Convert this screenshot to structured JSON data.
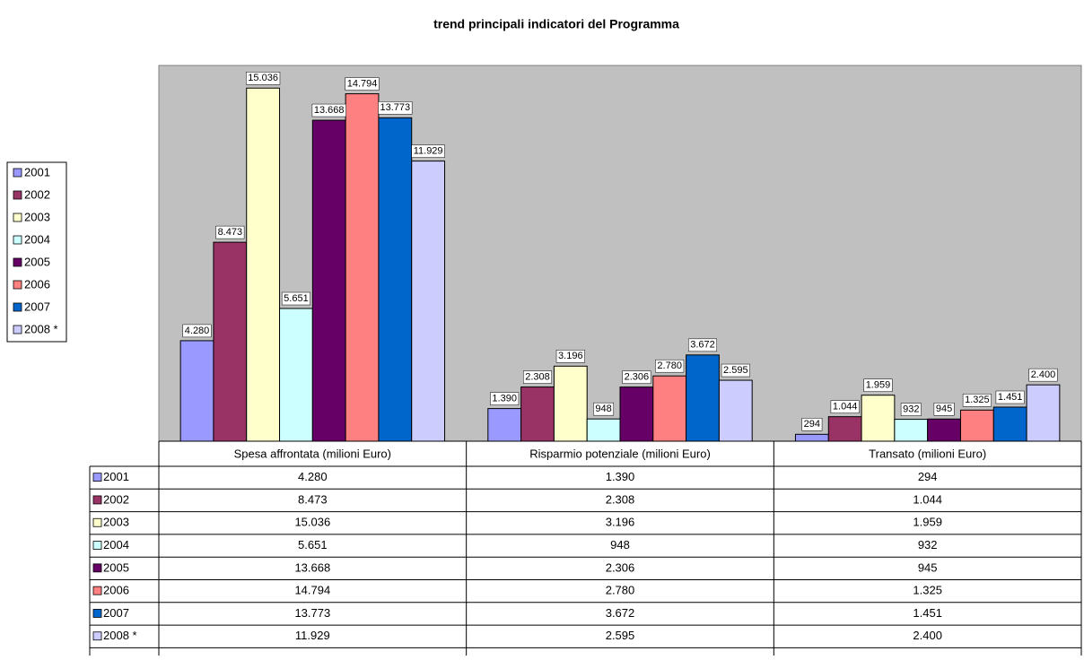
{
  "chart_data": {
    "type": "bar",
    "title": "trend principali indicatori del Programma",
    "categories": [
      "Spesa affrontata (milioni Euro)",
      "Risparmio potenziale (milioni Euro)",
      "Transato (milioni Euro)"
    ],
    "ylim": [
      0,
      16000
    ],
    "series": [
      {
        "name": "2001",
        "color": "#9999ff",
        "values": [
          4280,
          1390,
          294
        ],
        "value_labels": [
          "4.280",
          "1.390",
          "294"
        ]
      },
      {
        "name": "2002",
        "color": "#993366",
        "values": [
          8473,
          2308,
          1044
        ],
        "value_labels": [
          "8.473",
          "2.308",
          "1.044"
        ]
      },
      {
        "name": "2003",
        "color": "#ffffcc",
        "values": [
          15036,
          3196,
          1959
        ],
        "value_labels": [
          "15.036",
          "3.196",
          "1.959"
        ]
      },
      {
        "name": "2004",
        "color": "#ccffff",
        "values": [
          5651,
          948,
          932
        ],
        "value_labels": [
          "5.651",
          "948",
          "932"
        ]
      },
      {
        "name": "2005",
        "color": "#660066",
        "values": [
          13668,
          2306,
          945
        ],
        "value_labels": [
          "13.668",
          "2.306",
          "945"
        ]
      },
      {
        "name": "2006",
        "color": "#ff8080",
        "values": [
          14794,
          2780,
          1325
        ],
        "value_labels": [
          "14.794",
          "2.780",
          "1.325"
        ]
      },
      {
        "name": "2007",
        "color": "#0066cc",
        "values": [
          13773,
          3672,
          1451
        ],
        "value_labels": [
          "13.773",
          "3.672",
          "1.451"
        ]
      },
      {
        "name": "2008 *",
        "color": "#ccccff",
        "values": [
          11929,
          2595,
          2400
        ],
        "value_labels": [
          "11.929",
          "2.595",
          "2.400"
        ]
      }
    ]
  }
}
